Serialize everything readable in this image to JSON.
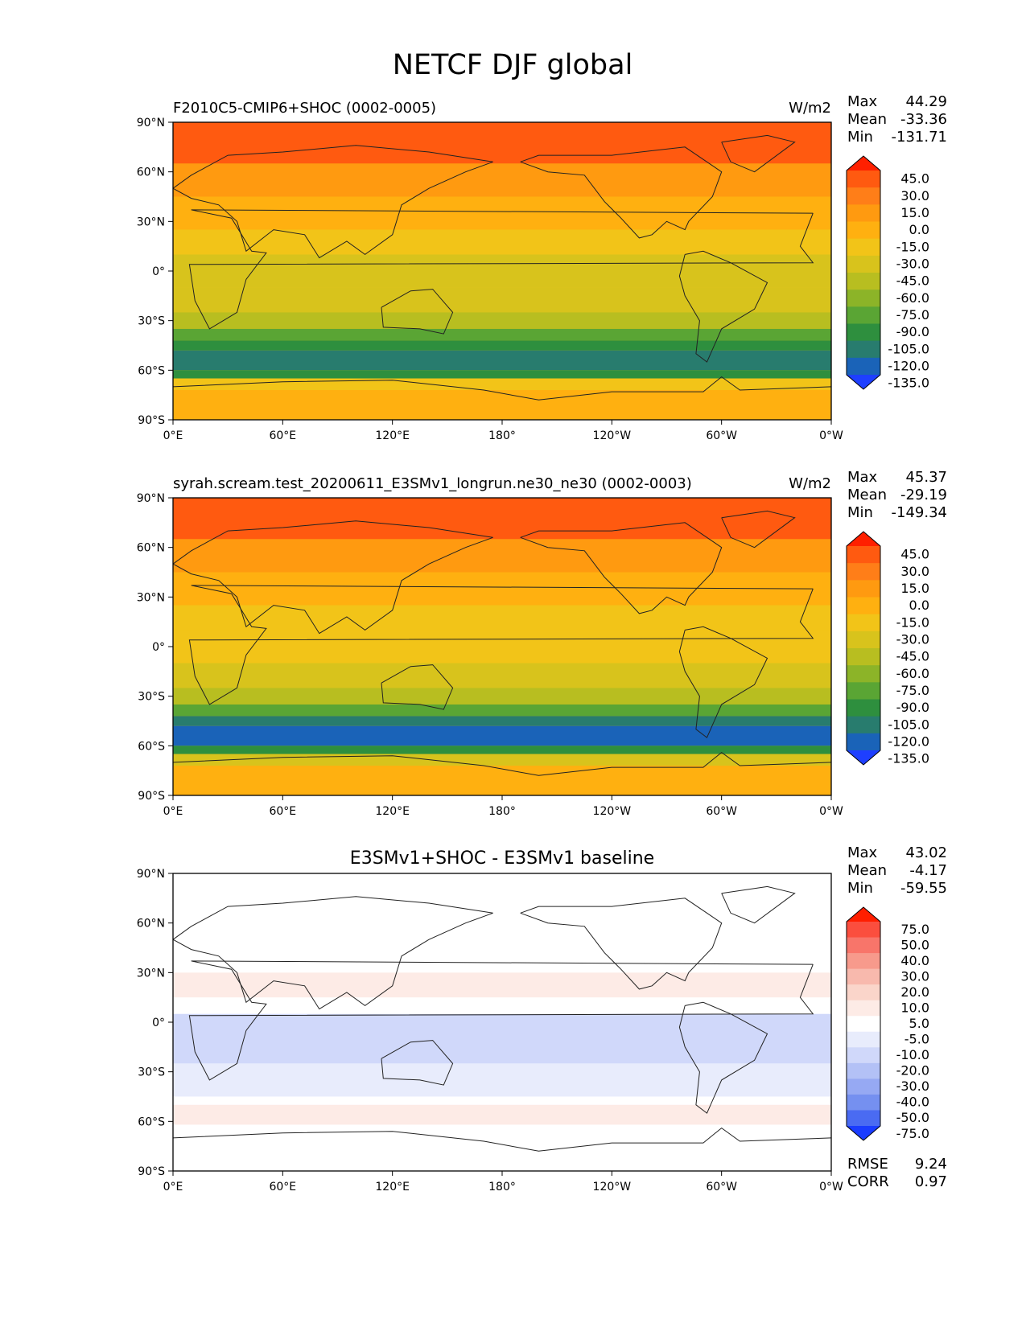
{
  "figure": {
    "title": "NETCF DJF global"
  },
  "chart_data": [
    {
      "type": "heatmap",
      "title": "F2010C5-CMIP6+SHOC (0002-0005)",
      "units": "W/m2",
      "stats": [
        {
          "label": "Max",
          "value": "44.29"
        },
        {
          "label": "Mean",
          "value": "-33.36"
        },
        {
          "label": "Min",
          "value": "-131.71"
        }
      ],
      "x_ticks": [
        "0°E",
        "60°E",
        "120°E",
        "180°",
        "120°W",
        "60°W",
        "0°W"
      ],
      "y_ticks": [
        "90°N",
        "60°N",
        "30°N",
        "0°",
        "30°S",
        "60°S",
        "90°S"
      ],
      "xlim": [
        0,
        360
      ],
      "ylim": [
        -90,
        90
      ],
      "colorbar": {
        "levels": [
          "45.0",
          "30.0",
          "15.0",
          "0.0",
          "-15.0",
          "-30.0",
          "-45.0",
          "-60.0",
          "-75.0",
          "-90.0",
          "-105.0",
          "-120.0",
          "-135.0"
        ],
        "colors": [
          "#ff2000",
          "#ff5a10",
          "#ff7e18",
          "#ff9a10",
          "#ffb010",
          "#f2c418",
          "#d8c31c",
          "#b8be20",
          "#8cb428",
          "#5aa534",
          "#2e8f3e",
          "#287c6e",
          "#1a63b8",
          "#1e3fff"
        ]
      },
      "bands": [
        {
          "lat": [
            65,
            90
          ],
          "value": 30
        },
        {
          "lat": [
            45,
            65
          ],
          "value": 10
        },
        {
          "lat": [
            25,
            45
          ],
          "value": -10
        },
        {
          "lat": [
            10,
            25
          ],
          "value": -30
        },
        {
          "lat": [
            -10,
            10
          ],
          "value": -40
        },
        {
          "lat": [
            -25,
            -10
          ],
          "value": -45
        },
        {
          "lat": [
            -35,
            -25
          ],
          "value": -60
        },
        {
          "lat": [
            -42,
            -35
          ],
          "value": -80
        },
        {
          "lat": [
            -48,
            -42
          ],
          "value": -100
        },
        {
          "lat": [
            -60,
            -48
          ],
          "value": -112
        },
        {
          "lat": [
            -65,
            -60
          ],
          "value": -95
        },
        {
          "lat": [
            -72,
            -65
          ],
          "value": -30
        },
        {
          "lat": [
            -90,
            -72
          ],
          "value": -5
        }
      ]
    },
    {
      "type": "heatmap",
      "title": "syrah.scream.test_20200611_E3SMv1_longrun.ne30_ne30 (0002-0003)",
      "units": "W/m2",
      "stats": [
        {
          "label": "Max",
          "value": "45.37"
        },
        {
          "label": "Mean",
          "value": "-29.19"
        },
        {
          "label": "Min",
          "value": "-149.34"
        }
      ],
      "x_ticks": [
        "0°E",
        "60°E",
        "120°E",
        "180°",
        "120°W",
        "60°W",
        "0°W"
      ],
      "y_ticks": [
        "90°N",
        "60°N",
        "30°N",
        "0°",
        "30°S",
        "60°S",
        "90°S"
      ],
      "xlim": [
        0,
        360
      ],
      "ylim": [
        -90,
        90
      ],
      "colorbar": {
        "levels": [
          "45.0",
          "30.0",
          "15.0",
          "0.0",
          "-15.0",
          "-30.0",
          "-45.0",
          "-60.0",
          "-75.0",
          "-90.0",
          "-105.0",
          "-120.0",
          "-135.0"
        ],
        "colors": [
          "#ff2000",
          "#ff5a10",
          "#ff7e18",
          "#ff9a10",
          "#ffb010",
          "#f2c418",
          "#d8c31c",
          "#b8be20",
          "#8cb428",
          "#5aa534",
          "#2e8f3e",
          "#287c6e",
          "#1a63b8",
          "#1e3fff"
        ]
      },
      "bands": [
        {
          "lat": [
            65,
            90
          ],
          "value": 30
        },
        {
          "lat": [
            45,
            65
          ],
          "value": 10
        },
        {
          "lat": [
            25,
            45
          ],
          "value": -5
        },
        {
          "lat": [
            10,
            25
          ],
          "value": -25
        },
        {
          "lat": [
            -10,
            10
          ],
          "value": -30
        },
        {
          "lat": [
            -25,
            -10
          ],
          "value": -35
        },
        {
          "lat": [
            -35,
            -25
          ],
          "value": -50
        },
        {
          "lat": [
            -42,
            -35
          ],
          "value": -85
        },
        {
          "lat": [
            -48,
            -42
          ],
          "value": -110
        },
        {
          "lat": [
            -60,
            -48
          ],
          "value": -125
        },
        {
          "lat": [
            -65,
            -60
          ],
          "value": -100
        },
        {
          "lat": [
            -72,
            -65
          ],
          "value": -40
        },
        {
          "lat": [
            -90,
            -72
          ],
          "value": -5
        }
      ]
    },
    {
      "type": "heatmap",
      "title": "E3SMv1+SHOC - E3SMv1 baseline",
      "units": "",
      "stats": [
        {
          "label": "Max",
          "value": "43.02"
        },
        {
          "label": "Mean",
          "value": "-4.17"
        },
        {
          "label": "Min",
          "value": "-59.55"
        }
      ],
      "extra_stats": [
        {
          "label": "RMSE",
          "value": "9.24"
        },
        {
          "label": "CORR",
          "value": "0.97"
        }
      ],
      "x_ticks": [
        "0°E",
        "60°E",
        "120°E",
        "180°",
        "120°W",
        "60°W",
        "0°W"
      ],
      "y_ticks": [
        "90°N",
        "60°N",
        "30°N",
        "0°",
        "30°S",
        "60°S",
        "90°S"
      ],
      "xlim": [
        0,
        360
      ],
      "ylim": [
        -90,
        90
      ],
      "colorbar": {
        "levels": [
          "75.0",
          "50.0",
          "40.0",
          "30.0",
          "20.0",
          "10.0",
          "5.0",
          "-5.0",
          "-10.0",
          "-20.0",
          "-30.0",
          "-40.0",
          "-50.0",
          "-75.0"
        ],
        "colors": [
          "#ff1e00",
          "#fb4e3e",
          "#f8756a",
          "#f79a8c",
          "#f8b9ad",
          "#fad5ca",
          "#fdebe6",
          "#ffffff",
          "#e8ecfc",
          "#d0d8fa",
          "#b3c1f6",
          "#96a9f3",
          "#7590f0",
          "#4a6bf2",
          "#1a3cff"
        ]
      },
      "bands": [
        {
          "lat": [
            60,
            90
          ],
          "value": 0
        },
        {
          "lat": [
            15,
            30
          ],
          "value": 8
        },
        {
          "lat": [
            -25,
            5
          ],
          "value": -12
        },
        {
          "lat": [
            -45,
            -25
          ],
          "value": -6
        },
        {
          "lat": [
            -62,
            -50
          ],
          "value": 7
        },
        {
          "lat": [
            -90,
            -62
          ],
          "value": 0
        }
      ]
    }
  ]
}
